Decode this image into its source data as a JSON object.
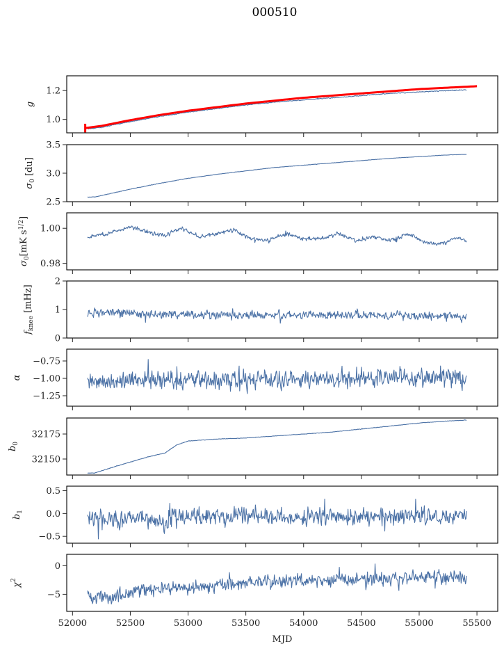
{
  "chart_data": {
    "type": "line",
    "title": "000510",
    "xlabel": "MJD",
    "xlim": [
      51950,
      55680
    ],
    "xticks": [
      52000,
      52500,
      53000,
      53500,
      54000,
      54500,
      55000,
      55500
    ],
    "xtick_labels": [
      "52000",
      "52500",
      "53000",
      "53500",
      "54000",
      "54500",
      "55000",
      "55500"
    ],
    "grid": false,
    "panels": [
      {
        "id": "g",
        "ylabel": "g",
        "ylabel_sub": "",
        "ylabel_sup": "",
        "ylim": [
          0.907,
          1.302
        ],
        "yticks": [
          1.0,
          1.2
        ],
        "ytick_labels": [
          "1.0",
          "1.2"
        ],
        "series": [
          {
            "name": "g",
            "color": "#4c72a6",
            "x": [
              52130,
              52250,
              52500,
              52750,
              53000,
              53250,
              53500,
              53750,
              54000,
              54250,
              54500,
              54750,
              55000,
              55250,
              55410
            ],
            "y": [
              0.935,
              0.945,
              0.985,
              1.02,
              1.05,
              1.075,
              1.1,
              1.12,
              1.135,
              1.15,
              1.165,
              1.18,
              1.19,
              1.2,
              1.205
            ],
            "noise": 0.002
          },
          {
            "name": "g-reference",
            "color": "#ff0000",
            "x": [
              52110,
              52250,
              52500,
              52750,
              53000,
              53250,
              53500,
              53750,
              54000,
              54250,
              54500,
              54750,
              55000,
              55250,
              55500
            ],
            "y": [
              0.94,
              0.955,
              0.995,
              1.03,
              1.06,
              1.085,
              1.11,
              1.13,
              1.15,
              1.165,
              1.18,
              1.195,
              1.21,
              1.22,
              1.23
            ],
            "noise": 0.0,
            "errorbar": {
              "x": 52110,
              "y": 0.94,
              "err": 0.03
            }
          }
        ]
      },
      {
        "id": "sigma0-du",
        "ylabel": "σ",
        "ylabel_sub": "0",
        "ylabel_sup": "",
        "ylabel_suffix": " [du]",
        "ylim": [
          2.5,
          3.5
        ],
        "yticks": [
          2.5,
          3.0,
          3.5
        ],
        "ytick_labels": [
          "2.5",
          "3.0",
          "3.5"
        ],
        "series": [
          {
            "name": "sigma0_du",
            "color": "#4c72a6",
            "x": [
              52130,
              52200,
              52500,
              52750,
              53000,
              53250,
              53500,
              53750,
              54000,
              54250,
              54500,
              54750,
              55000,
              55250,
              55410
            ],
            "y": [
              2.58,
              2.585,
              2.72,
              2.82,
              2.91,
              2.98,
              3.04,
              3.1,
              3.14,
              3.18,
              3.22,
              3.26,
              3.29,
              3.32,
              3.33
            ],
            "noise": 0.002
          }
        ]
      },
      {
        "id": "sigma0-mk",
        "ylabel": "σ",
        "ylabel_sub": "0",
        "ylabel_sup": "1/2",
        "ylabel_suffix": "[mK s   ]",
        "ylim": [
          0.9763,
          1.0088
        ],
        "yticks": [
          0.98,
          1.0
        ],
        "ytick_labels": [
          "0.98",
          "1.00"
        ],
        "series": [
          {
            "name": "sigma0_mK",
            "color": "#4c72a6",
            "x": [
              52130,
              52300,
              52500,
              52650,
              52800,
              52950,
              53100,
              53250,
              53400,
              53550,
              53700,
              53850,
              54000,
              54150,
              54300,
              54450,
              54600,
              54750,
              54900,
              55050,
              55200,
              55300,
              55410
            ],
            "y": [
              0.995,
              0.997,
              1.001,
              0.998,
              0.996,
              1.0,
              0.995,
              0.997,
              0.999,
              0.994,
              0.993,
              0.997,
              0.994,
              0.994,
              0.997,
              0.993,
              0.995,
              0.993,
              0.997,
              0.992,
              0.991,
              0.995,
              0.993
            ],
            "noise": 0.0008
          }
        ]
      },
      {
        "id": "fknee",
        "ylabel": "f",
        "ylabel_sub": "knee",
        "ylabel_sup": "",
        "ylabel_suffix": " [mHz]",
        "ylim": [
          0,
          2
        ],
        "yticks": [
          0,
          1,
          2
        ],
        "ytick_labels": [
          "0",
          "1",
          "2"
        ],
        "series": [
          {
            "name": "fknee",
            "color": "#4c72a6",
            "x": [
              52130,
              52140,
              52500,
              53000,
              53500,
              54000,
              54500,
              55000,
              55410
            ],
            "y": [
              0.78,
              0.9,
              0.85,
              0.82,
              0.8,
              0.82,
              0.8,
              0.78,
              0.75
            ],
            "noise": 0.1
          }
        ]
      },
      {
        "id": "alpha",
        "ylabel": "α",
        "ylabel_sub": "",
        "ylabel_sup": "",
        "ylim": [
          -1.4,
          -0.58
        ],
        "yticks": [
          -1.25,
          -1.0,
          -0.75
        ],
        "ytick_labels": [
          "−1.25",
          "−1.00",
          "−0.75"
        ],
        "series": [
          {
            "name": "alpha",
            "color": "#4c72a6",
            "x": [
              52130,
              52500,
              53000,
              53500,
              54000,
              54500,
              55000,
              55410
            ],
            "y": [
              -1.05,
              -1.03,
              -1.02,
              -1.03,
              -1.0,
              -1.01,
              -0.99,
              -1.0
            ],
            "noise": 0.09
          }
        ]
      },
      {
        "id": "b0",
        "ylabel": "b",
        "ylabel_sub": "0",
        "ylabel_sup": "",
        "ylim": [
          32134,
          32191
        ],
        "yticks": [
          32150,
          32175
        ],
        "ytick_labels": [
          "32150",
          "32175"
        ],
        "series": [
          {
            "name": "b0",
            "color": "#4c72a6",
            "x": [
              52130,
              52190,
              52300,
              52500,
              52650,
              52800,
              52900,
              53000,
              53250,
              53500,
              53750,
              54000,
              54250,
              54500,
              54750,
              55000,
              55250,
              55410
            ],
            "y": [
              32136,
              32136,
              32140,
              32147,
              32152,
              32156,
              32164,
              32168,
              32170,
              32171,
              32173,
              32175,
              32177,
              32180,
              32183,
              32186,
              32188,
              32189
            ],
            "noise": 0.15
          }
        ]
      },
      {
        "id": "b1",
        "ylabel": "b",
        "ylabel_sub": "1",
        "ylabel_sup": "",
        "ylim": [
          -0.65,
          0.6
        ],
        "yticks": [
          -0.5,
          0.0,
          0.5
        ],
        "ytick_labels": [
          "−0.5",
          "0.0",
          "0.5"
        ],
        "series": [
          {
            "name": "b1",
            "color": "#4c72a6",
            "x": [
              52130,
              52300,
              52600,
              52800,
              52900,
              53500,
              54000,
              54500,
              55000,
              55410
            ],
            "y": [
              0.0,
              -0.15,
              -0.1,
              -0.2,
              -0.05,
              -0.05,
              -0.08,
              -0.08,
              -0.05,
              -0.05
            ],
            "noise": 0.13
          }
        ]
      },
      {
        "id": "chi2",
        "ylabel": "χ",
        "ylabel_sub": "",
        "ylabel_sup": "2",
        "ylim": [
          -8.0,
          2.0
        ],
        "yticks": [
          -5,
          0
        ],
        "ytick_labels": [
          "−5",
          "0"
        ],
        "series": [
          {
            "name": "chi2",
            "color": "#4c72a6",
            "x": [
              52130,
              52300,
              52500,
              52750,
              53000,
              53250,
              53500,
              53750,
              54000,
              54500,
              55000,
              55410
            ],
            "y": [
              -5.0,
              -5.8,
              -4.5,
              -4.0,
              -3.8,
              -3.5,
              -2.8,
              -2.8,
              -2.6,
              -2.3,
              -2.1,
              -2.0
            ],
            "noise": 0.8
          }
        ]
      }
    ]
  }
}
